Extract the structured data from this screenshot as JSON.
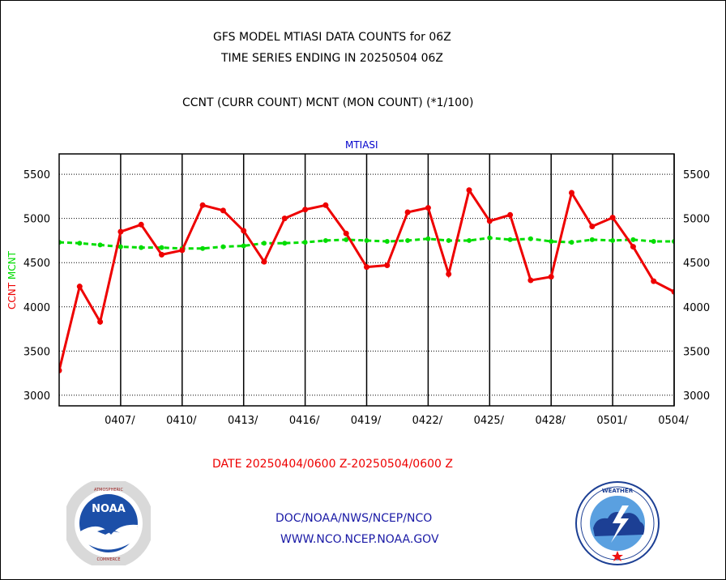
{
  "header": {
    "title_line1": "GFS MODEL MTIASI DATA COUNTS for 06Z",
    "title_line2": "TIME SERIES ENDING IN 20250504 06Z",
    "subtitle": "CCNT (CURR COUNT) MCNT (MON COUNT) (*1/100)"
  },
  "footer": {
    "date_range": "DATE 20250404/0600 Z-20250504/0600 Z",
    "credit_line1": "DOC/NOAA/NWS/NCEP/NCO",
    "credit_line2": "WWW.NCO.NCEP.NOAA.GOV"
  },
  "logos": {
    "left": "noaa-logo",
    "right": "national-weather-service-logo"
  },
  "chart_data": {
    "type": "line",
    "title": "MTIASI",
    "ylabel_parts": [
      {
        "text": "CCNT",
        "color": "#ee0000"
      },
      {
        "text": "MCNT",
        "color": "#00dd00"
      }
    ],
    "x_start": "2025-04-04",
    "x_end": "2025-05-04",
    "xlim": [
      0,
      30
    ],
    "ylim": [
      2880,
      5730
    ],
    "yticks": [
      3000,
      3500,
      4000,
      4500,
      5000,
      5500
    ],
    "xtick_positions": [
      3,
      6,
      9,
      12,
      15,
      18,
      21,
      24,
      27,
      30
    ],
    "xtick_labels": [
      "0407/",
      "0410/",
      "0413/",
      "0416/",
      "0419/",
      "0422/",
      "0425/",
      "0428/",
      "0501/",
      "0504/"
    ],
    "grid": "horizontal dotted, vertical solid",
    "series": [
      {
        "name": "CCNT",
        "color": "#ee0000",
        "style": "solid",
        "x": [
          0,
          1,
          2,
          3,
          4,
          5,
          6,
          7,
          8,
          9,
          10,
          11,
          12,
          13,
          14,
          15,
          16,
          17,
          18,
          19,
          20,
          21,
          22,
          23,
          24,
          25,
          26,
          27,
          28,
          29,
          30
        ],
        "values": [
          3280,
          4230,
          3830,
          4850,
          4930,
          4590,
          4640,
          5150,
          5090,
          4860,
          4510,
          5000,
          5100,
          5150,
          4830,
          4450,
          4470,
          5070,
          5120,
          4370,
          5320,
          4970,
          5040,
          4300,
          4340,
          5290,
          4910,
          5010,
          4680,
          4290,
          4170
        ]
      },
      {
        "name": "MCNT",
        "color": "#00dd00",
        "style": "dashed",
        "x": [
          0,
          1,
          2,
          3,
          4,
          5,
          6,
          7,
          8,
          9,
          10,
          11,
          12,
          13,
          14,
          15,
          16,
          17,
          18,
          19,
          20,
          21,
          22,
          23,
          24,
          25,
          26,
          27,
          28,
          29,
          30
        ],
        "values": [
          4730,
          4720,
          4700,
          4680,
          4670,
          4670,
          4660,
          4660,
          4680,
          4690,
          4720,
          4720,
          4730,
          4750,
          4760,
          4750,
          4740,
          4750,
          4770,
          4750,
          4750,
          4780,
          4760,
          4770,
          4740,
          4730,
          4760,
          4750,
          4760,
          4740,
          4740
        ]
      }
    ]
  }
}
